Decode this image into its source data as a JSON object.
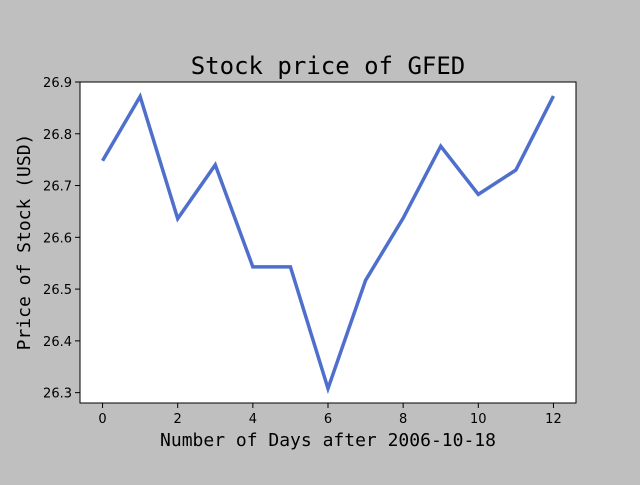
{
  "chart_data": {
    "type": "line",
    "title": "Stock price of GFED",
    "xlabel": "Number of Days after 2006-10-18",
    "ylabel": "Price of Stock (USD)",
    "x": [
      0,
      1,
      2,
      3,
      4,
      5,
      6,
      7,
      8,
      9,
      10,
      11,
      12
    ],
    "series": [
      {
        "values": [
          26.748,
          26.872,
          26.636,
          26.74,
          26.543,
          26.543,
          26.308,
          26.517,
          26.637,
          26.776,
          26.683,
          26.73,
          26.873
        ],
        "color": "#4f6fcc"
      }
    ],
    "xlim": [
      -0.6,
      12.6
    ],
    "ylim": [
      26.28,
      26.9
    ],
    "xticks": [
      0,
      2,
      4,
      6,
      8,
      10,
      12
    ],
    "yticks": [
      26.3,
      26.4,
      26.5,
      26.6,
      26.7,
      26.8,
      26.9
    ],
    "xtick_labels": [
      "0",
      "2",
      "4",
      "6",
      "8",
      "10",
      "12"
    ],
    "ytick_labels": [
      "26.3",
      "26.4",
      "26.5",
      "26.6",
      "26.7",
      "26.8",
      "26.9"
    ],
    "grid": false,
    "legend": "none"
  }
}
